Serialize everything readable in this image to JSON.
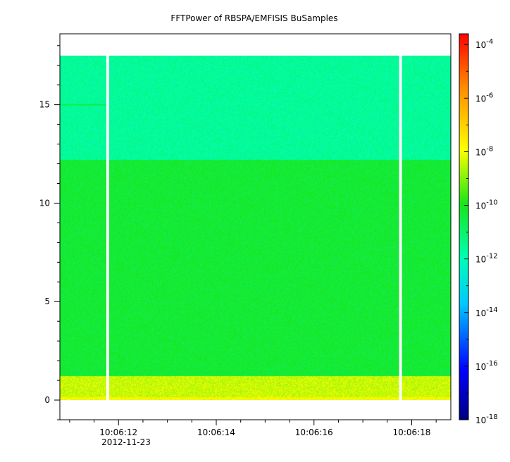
{
  "chart_data": {
    "type": "heatmap",
    "title": "FFTPower of RBSPA/EMFISIS  BuSamples",
    "xlabel": "",
    "ylabel": "",
    "x_ticks": [
      {
        "label": "10:06:12",
        "t": 12
      },
      {
        "label": "10:06:14",
        "t": 14
      },
      {
        "label": "10:06:16",
        "t": 16
      },
      {
        "label": "10:06:18",
        "t": 18
      }
    ],
    "x_date_label": "2012-11-23",
    "x_range_seconds": [
      10.8,
      18.8
    ],
    "ylim": [
      -1,
      18.6
    ],
    "y_ticks": [
      0,
      5,
      10,
      15
    ],
    "colorbar": {
      "scale": "log",
      "range_exponents": [
        -18,
        -3.6
      ],
      "ticks": [
        {
          "base": "10",
          "exp": "-4",
          "e": -4
        },
        {
          "base": "10",
          "exp": "-6",
          "e": -6
        },
        {
          "base": "10",
          "exp": "-8",
          "e": -8
        },
        {
          "base": "10",
          "exp": "-10",
          "e": -10
        },
        {
          "base": "10",
          "exp": "-12",
          "e": -12
        },
        {
          "base": "10",
          "exp": "-14",
          "e": -14
        },
        {
          "base": "10",
          "exp": "-16",
          "e": -16
        },
        {
          "base": "10",
          "exp": "-18",
          "e": -18
        }
      ]
    },
    "data_extent": {
      "t_start": 10.8,
      "t_end": 18.8,
      "y_min": 0,
      "y_max": 17.5
    },
    "gaps_at_seconds": [
      11.78,
      17.77
    ],
    "bands": [
      {
        "y_from": 0,
        "y_to": 1.2,
        "log_power": -8.4
      },
      {
        "y_from": 1.2,
        "y_to": 12.2,
        "log_power": -10.3
      },
      {
        "y_from": 12.2,
        "y_to": 17.5,
        "log_power": -11.6
      }
    ],
    "line_feature": {
      "y": 15.0,
      "t_start": 10.8,
      "t_end": 11.75,
      "log_power": -10.6
    }
  }
}
